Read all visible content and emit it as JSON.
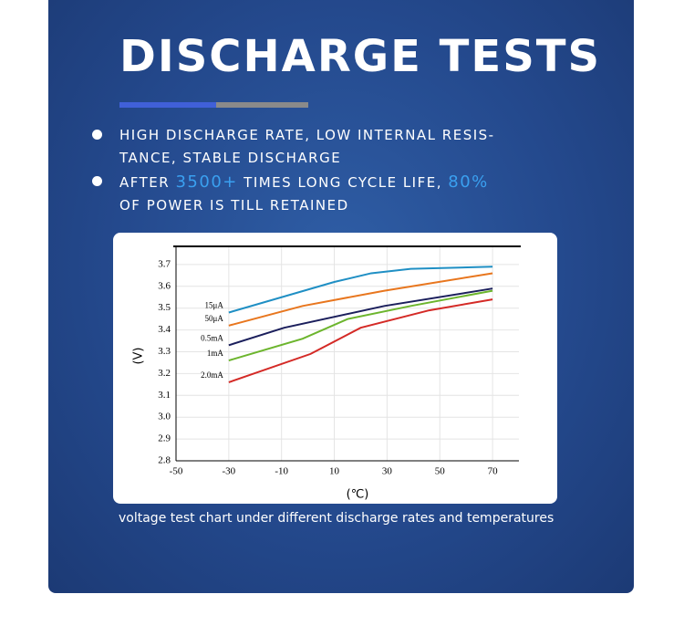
{
  "header": {
    "title": "DISCHARGE TESTS"
  },
  "bullets": [
    {
      "lines": [
        "HIGH DISCHARGE RATE, LOW INTERNAL RESIS-",
        "TANCE, STABLE DISCHARGE"
      ]
    },
    {
      "parts": [
        "AFTER",
        "3500+",
        "TIMES LONG CYCLE LIFE,",
        "80%"
      ],
      "lines": [
        "OF POWER IS TILL RETAINED"
      ]
    }
  ],
  "caption": "voltage test chart under different discharge rates and temperatures",
  "chart_data": {
    "type": "line",
    "y_label": "(V)",
    "x_label": "(℃)",
    "xlim": [
      -50,
      80
    ],
    "xticks": [
      -50,
      -30,
      -10,
      10,
      30,
      50,
      70
    ],
    "ylim": [
      2.8,
      3.8
    ],
    "yticks": [
      2.8,
      2.9,
      {
        "value": 3,
        "label": "3.0"
      },
      3.1,
      3.2,
      3.3,
      3.4,
      3.5,
      3.6,
      3.7
    ],
    "grid": true,
    "series": [
      {
        "name": "15μA",
        "color": "#1f8fc4",
        "x": [
          -30,
          10,
          24,
          39,
          70
        ],
        "values": [
          3.48,
          3.62,
          3.66,
          3.68,
          3.69
        ]
      },
      {
        "name": "50μA",
        "color": "#e8761e",
        "x": [
          -30,
          -2,
          29,
          70
        ],
        "values": [
          3.42,
          3.51,
          3.58,
          3.66
        ]
      },
      {
        "name": "0.5mA",
        "color": "#1b1f5c",
        "x": [
          -30,
          -9,
          29,
          70
        ],
        "values": [
          3.33,
          3.41,
          3.51,
          3.59
        ]
      },
      {
        "name": "1mA",
        "color": "#6cb52d",
        "x": [
          -30,
          -2,
          15,
          39,
          70
        ],
        "values": [
          3.26,
          3.36,
          3.45,
          3.51,
          3.58
        ]
      },
      {
        "name": "2.0mA",
        "color": "#d42a26",
        "x": [
          -30,
          1,
          20,
          46,
          70
        ],
        "values": [
          3.16,
          3.29,
          3.41,
          3.49,
          3.54
        ]
      }
    ]
  }
}
